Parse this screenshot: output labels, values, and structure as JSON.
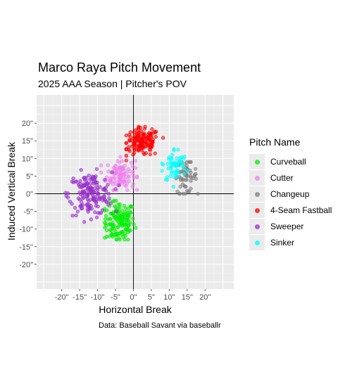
{
  "chart_data": {
    "type": "scatter",
    "title": "Marco Raya Pitch Movement",
    "subtitle": "2025 AAA Season | Pitcher's POV",
    "xlabel": "Horizontal Break",
    "ylabel": "Induced Vertical Break",
    "caption": "Data: Baseball Savant via baseballr",
    "xlim": [
      -27,
      28
    ],
    "ylim": [
      -27,
      28
    ],
    "x_ticks": [
      -20,
      -15,
      -10,
      -5,
      0,
      5,
      10,
      15,
      20
    ],
    "x_tick_labels": [
      "-20\"",
      "-15\"",
      "-10\"",
      "-5\"",
      "0\"",
      "5\"",
      "10\"",
      "15\"",
      "20\""
    ],
    "y_ticks": [
      -20,
      -15,
      -10,
      -5,
      0,
      5,
      10,
      15,
      20
    ],
    "y_tick_labels": [
      "-20\"",
      "-15\"",
      "-10\"",
      "-5\"",
      "0\"",
      "5\"",
      "10\"",
      "15\"",
      "20\""
    ],
    "grid": true,
    "reference_lines": {
      "x": 0,
      "y": 0
    },
    "legend": {
      "title": "Pitch Name",
      "position": "right"
    },
    "series": [
      {
        "name": "Curveball",
        "color": "#00ee00",
        "center": [
          -4,
          -8
        ],
        "spread": [
          2.2,
          3.0
        ],
        "count": 150,
        "x_range": [
          -8,
          1
        ],
        "y_range": [
          -13,
          -2
        ]
      },
      {
        "name": "Cutter",
        "color": "#ee82ee",
        "center": [
          -3.5,
          5.5
        ],
        "spread": [
          2.0,
          2.2
        ],
        "count": 110,
        "x_range": [
          -9,
          1
        ],
        "y_range": [
          1,
          13
        ]
      },
      {
        "name": "Changeup",
        "color": "#808080",
        "center": [
          14.5,
          5
        ],
        "spread": [
          1.6,
          2.4
        ],
        "count": 60,
        "x_range": [
          11,
          18
        ],
        "y_range": [
          0,
          9
        ]
      },
      {
        "name": "4-Seam Fastball",
        "color": "#ff0000",
        "center": [
          2.5,
          14.5
        ],
        "spread": [
          2.4,
          2.0
        ],
        "count": 150,
        "x_range": [
          -2,
          9
        ],
        "y_range": [
          9,
          19
        ]
      },
      {
        "name": "Sweeper",
        "color": "#9932cc",
        "center": [
          -12,
          0
        ],
        "spread": [
          3.0,
          3.0
        ],
        "count": 170,
        "x_range": [
          -20,
          -4
        ],
        "y_range": [
          -8,
          7
        ]
      },
      {
        "name": "Sinker",
        "color": "#00ffff",
        "center": [
          11.5,
          8
        ],
        "spread": [
          1.7,
          2.5
        ],
        "count": 60,
        "x_range": [
          8,
          16
        ],
        "y_range": [
          2,
          16
        ]
      }
    ]
  }
}
